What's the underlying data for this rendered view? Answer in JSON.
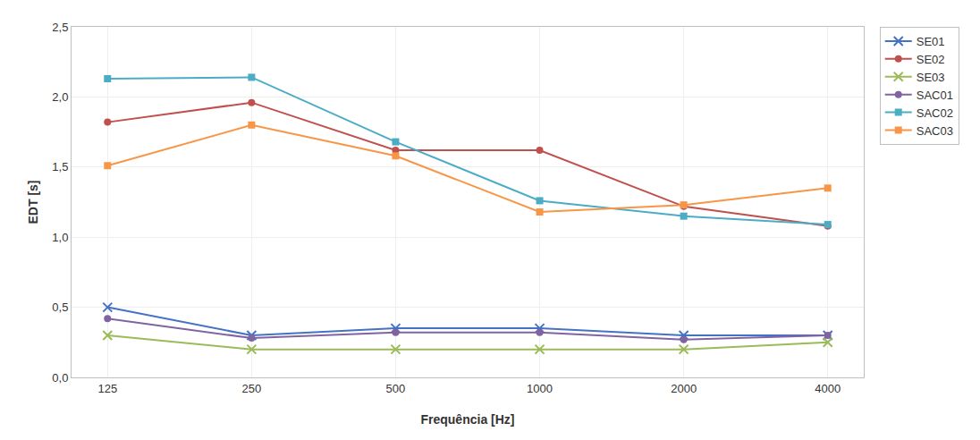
{
  "chart_data": {
    "type": "line",
    "categories": [
      "125",
      "250",
      "500",
      "1000",
      "2000",
      "4000"
    ],
    "series": [
      {
        "name": "SE01",
        "color": "#4472C4",
        "marker": "x",
        "values": [
          0.5,
          0.3,
          0.35,
          0.35,
          0.3,
          0.3
        ]
      },
      {
        "name": "SE02",
        "color": "#C0504D",
        "marker": "circle",
        "values": [
          1.82,
          1.96,
          1.62,
          1.62,
          1.22,
          1.08
        ]
      },
      {
        "name": "SE03",
        "color": "#9BBB59",
        "marker": "x",
        "values": [
          0.3,
          0.2,
          0.2,
          0.2,
          0.2,
          0.25
        ]
      },
      {
        "name": "SAC01",
        "color": "#8064A2",
        "marker": "circle",
        "values": [
          0.42,
          0.28,
          0.32,
          0.32,
          0.27,
          0.3
        ]
      },
      {
        "name": "SAC02",
        "color": "#4BACC6",
        "marker": "square",
        "values": [
          2.13,
          2.14,
          1.68,
          1.26,
          1.15,
          1.09
        ]
      },
      {
        "name": "SAC03",
        "color": "#F79646",
        "marker": "square",
        "values": [
          1.51,
          1.8,
          1.58,
          1.18,
          1.23,
          1.35
        ]
      }
    ],
    "xlabel": "Frequência [Hz]",
    "ylabel": "EDT [s]",
    "ylim": [
      0.0,
      2.5
    ],
    "yticks": [
      {
        "value": 0.0,
        "label": "0,0"
      },
      {
        "value": 0.5,
        "label": "0,5"
      },
      {
        "value": 1.0,
        "label": "1,0"
      },
      {
        "value": 1.5,
        "label": "1,5"
      },
      {
        "value": 2.0,
        "label": "2,0"
      },
      {
        "value": 2.5,
        "label": "2,5"
      }
    ],
    "grid": true,
    "legend": "right"
  }
}
